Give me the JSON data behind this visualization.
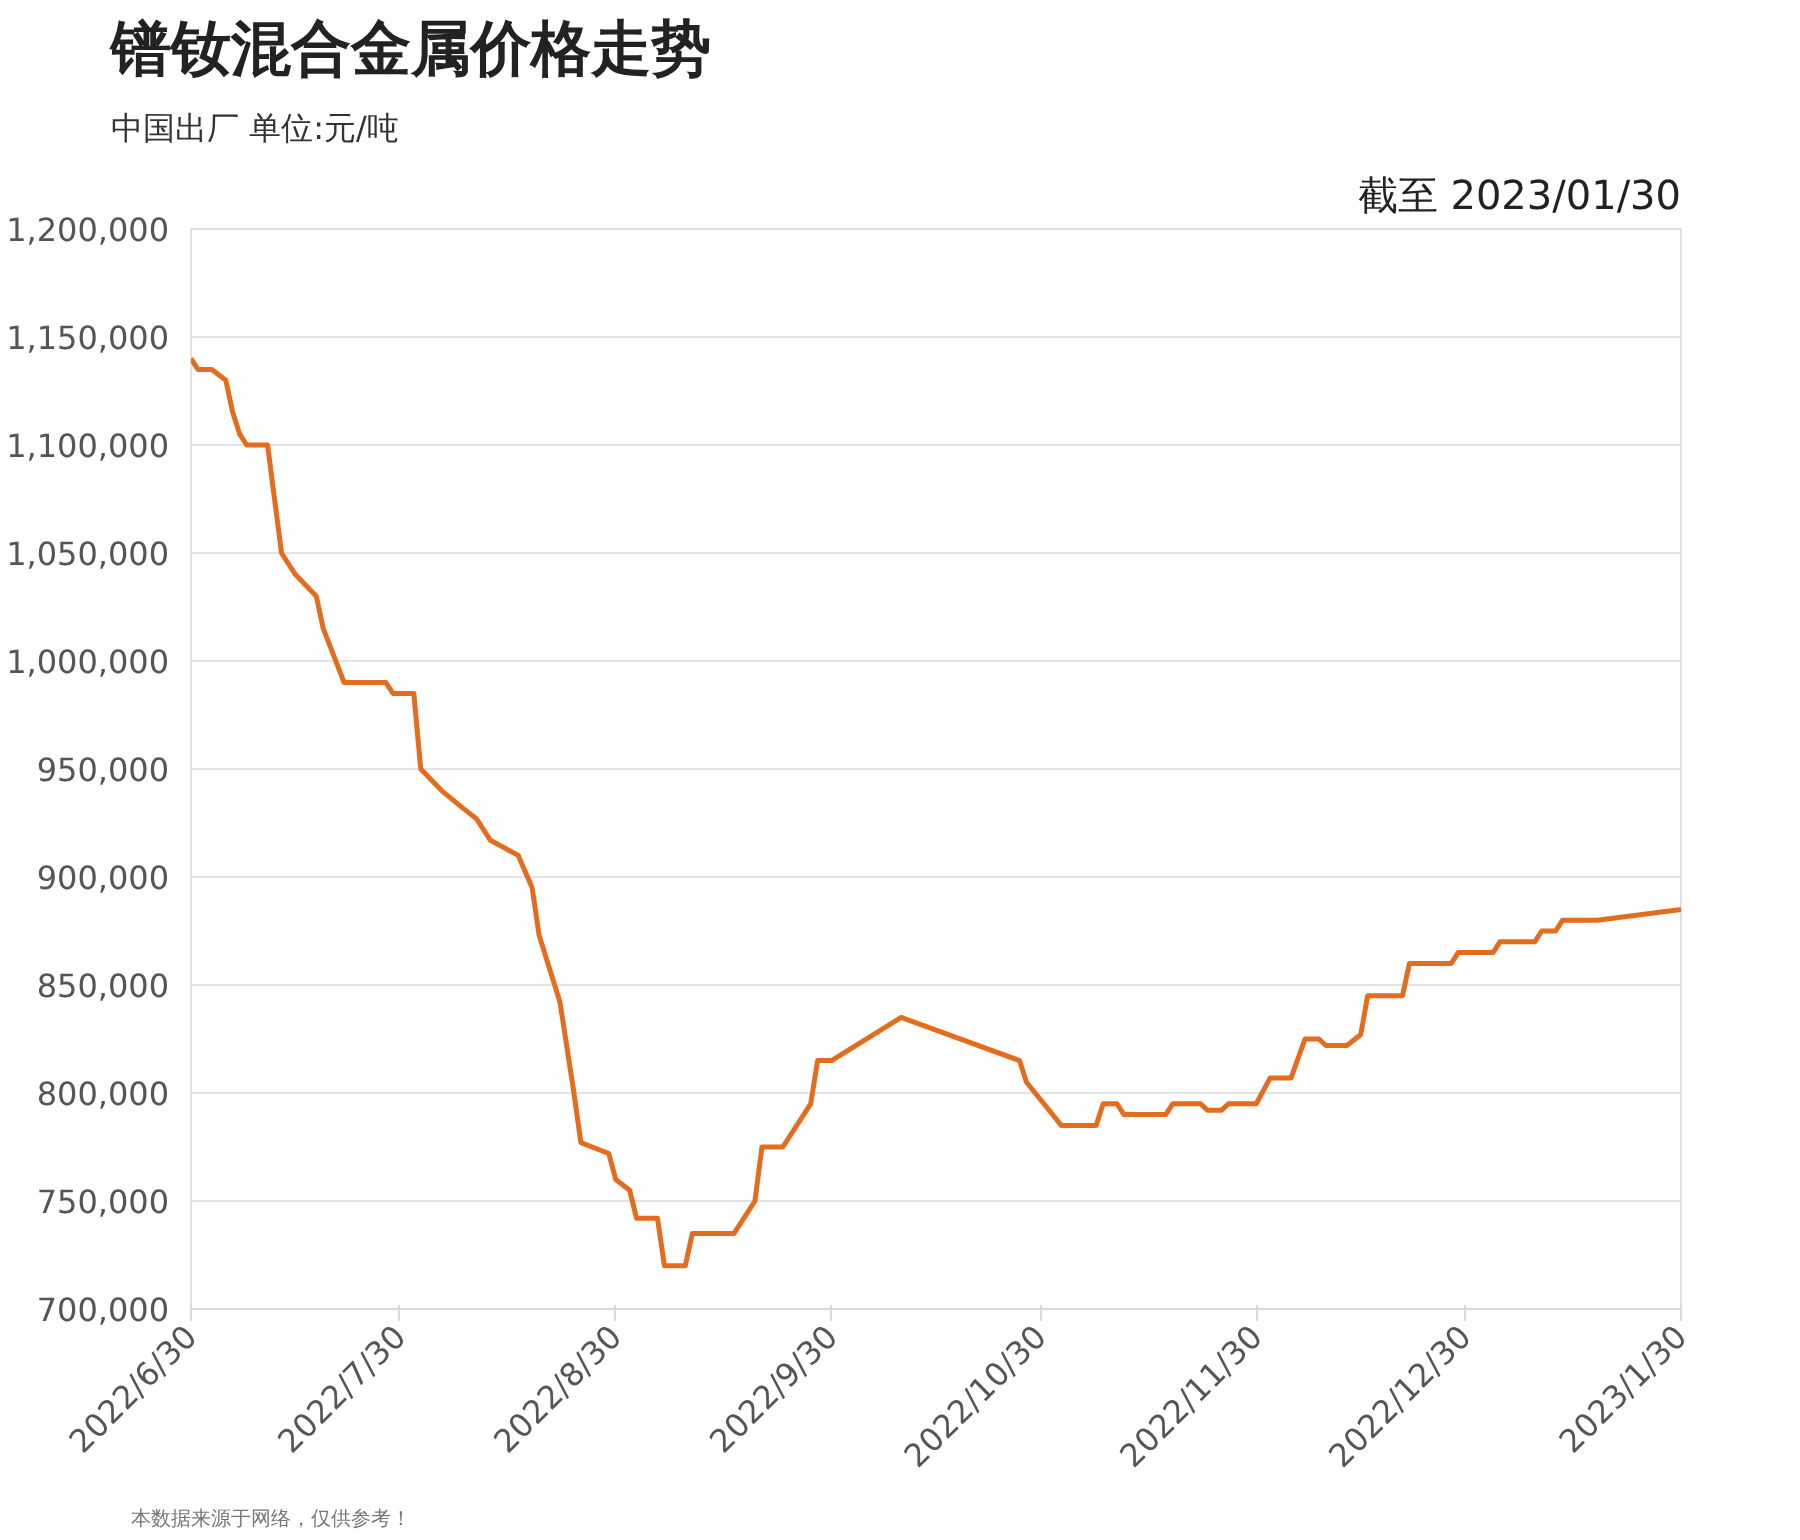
{
  "chart_data": {
    "type": "line",
    "title": "镨钕混合金属价格走势",
    "subtitle": "中国出厂  单位:元/吨",
    "annotations": [
      "截至 2023/01/30",
      "本数据来源于网络，仅供参考！"
    ],
    "x": [
      "2022-06-30",
      "2022-07-01",
      "2022-07-03",
      "2022-07-05",
      "2022-07-06",
      "2022-07-07",
      "2022-07-08",
      "2022-07-11",
      "2022-07-13",
      "2022-07-15",
      "2022-07-18",
      "2022-07-19",
      "2022-07-22",
      "2022-07-28",
      "2022-07-29",
      "2022-08-01",
      "2022-08-02",
      "2022-08-05",
      "2022-08-08",
      "2022-08-10",
      "2022-08-12",
      "2022-08-16",
      "2022-08-18",
      "2022-08-19",
      "2022-08-22",
      "2022-08-24",
      "2022-08-25",
      "2022-08-29",
      "2022-08-30",
      "2022-09-01",
      "2022-09-02",
      "2022-09-05",
      "2022-09-06",
      "2022-09-09",
      "2022-09-10",
      "2022-09-16",
      "2022-09-19",
      "2022-09-20",
      "2022-09-23",
      "2022-09-27",
      "2022-09-28",
      "2022-09-30",
      "2022-10-10",
      "2022-10-27",
      "2022-10-28",
      "2022-10-30",
      "2022-11-02",
      "2022-11-07",
      "2022-11-08",
      "2022-11-10",
      "2022-11-11",
      "2022-11-17",
      "2022-11-18",
      "2022-11-22",
      "2022-11-23",
      "2022-11-25",
      "2022-11-26",
      "2022-11-30",
      "2022-12-02",
      "2022-12-05",
      "2022-12-07",
      "2022-12-09",
      "2022-12-10",
      "2022-12-13",
      "2022-12-15",
      "2022-12-16",
      "2022-12-21",
      "2022-12-22",
      "2022-12-28",
      "2022-12-29",
      "2023-01-03",
      "2023-01-04",
      "2023-01-09",
      "2023-01-10",
      "2023-01-12",
      "2023-01-13",
      "2023-01-18",
      "2023-01-30"
    ],
    "series": [
      {
        "color": "#e36c1f",
        "values": [
          1140000,
          1135000,
          1135000,
          1130000,
          1115000,
          1105000,
          1100000,
          1100000,
          1050000,
          1040000,
          1030000,
          1015000,
          990000,
          990000,
          985000,
          985000,
          950000,
          940000,
          932000,
          927000,
          917000,
          910000,
          895000,
          873000,
          842000,
          800000,
          777000,
          772000,
          760000,
          755000,
          742000,
          742000,
          720000,
          720000,
          735000,
          735000,
          750000,
          775000,
          775000,
          795000,
          815000,
          815000,
          835000,
          815000,
          805000,
          797000,
          785000,
          785000,
          795000,
          795000,
          790000,
          790000,
          795000,
          795000,
          792000,
          792000,
          795000,
          795000,
          807000,
          807000,
          825000,
          825000,
          822000,
          822000,
          827000,
          845000,
          845000,
          860000,
          860000,
          865000,
          865000,
          870000,
          870000,
          875000,
          875000,
          880000,
          880000,
          885000
        ]
      }
    ],
    "xlim": [
      "2022-06-30",
      "2023-01-30"
    ],
    "xticks": [
      {
        "value": "2022-06-30",
        "label": "2022/6/30"
      },
      {
        "value": "2022-07-30",
        "label": "2022/7/30"
      },
      {
        "value": "2022-08-30",
        "label": "2022/8/30"
      },
      {
        "value": "2022-09-30",
        "label": "2022/9/30"
      },
      {
        "value": "2022-10-30",
        "label": "2022/10/30"
      },
      {
        "value": "2022-11-30",
        "label": "2022/11/30"
      },
      {
        "value": "2022-12-30",
        "label": "2022/12/30"
      },
      {
        "value": "2023-01-30",
        "label": "2023/1/30"
      }
    ],
    "ylim": [
      700000,
      1200000
    ],
    "yticks": [
      {
        "value": 700000,
        "label": "700,000"
      },
      {
        "value": 750000,
        "label": "750,000"
      },
      {
        "value": 800000,
        "label": "800,000"
      },
      {
        "value": 850000,
        "label": "850,000"
      },
      {
        "value": 900000,
        "label": "900,000"
      },
      {
        "value": 950000,
        "label": "950,000"
      },
      {
        "value": 1000000,
        "label": "1,000,000"
      },
      {
        "value": 1050000,
        "label": "1,050,000"
      },
      {
        "value": 1100000,
        "label": "1,100,000"
      },
      {
        "value": 1150000,
        "label": "1,150,000"
      },
      {
        "value": 1200000,
        "label": "1,200,000"
      }
    ],
    "grid": "y",
    "marker": "none",
    "line_style": "solid"
  }
}
